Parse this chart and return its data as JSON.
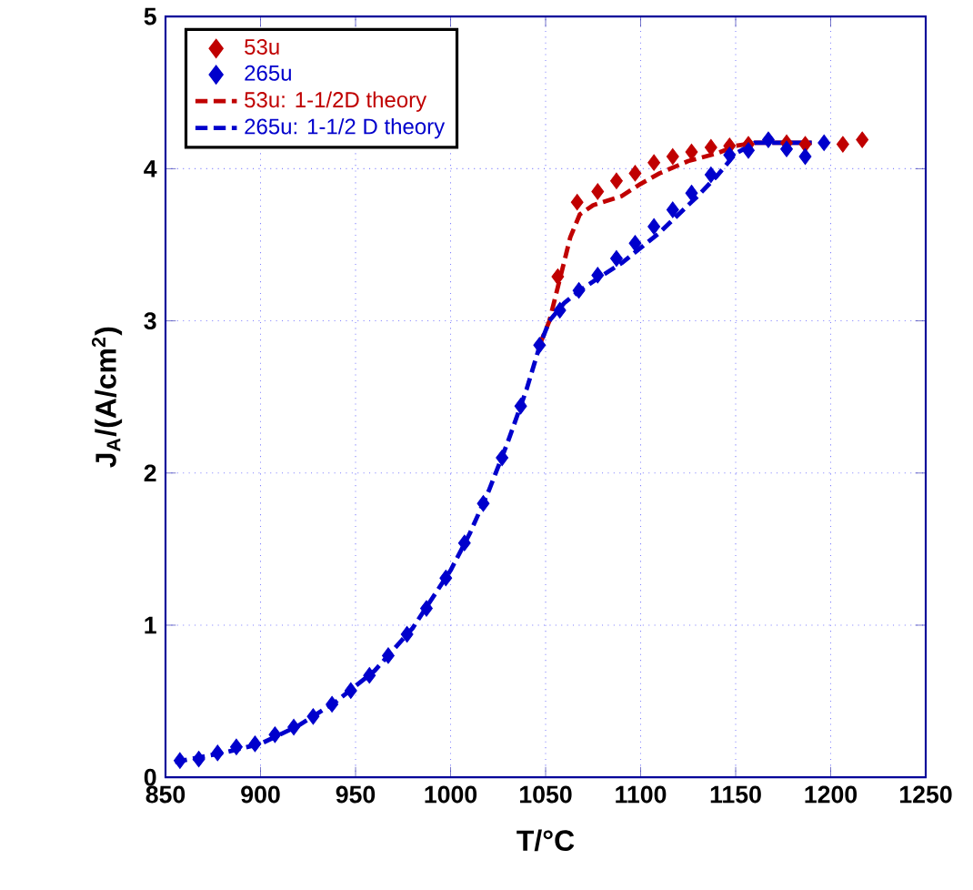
{
  "chart_data": {
    "type": "scatter",
    "xlabel": "T/°C",
    "ylabel": "J$_{A}$/(A/cm$^{2}$)",
    "xlim": [
      850,
      1250
    ],
    "ylim": [
      0,
      5
    ],
    "xticks": [
      850,
      900,
      950,
      1000,
      1050,
      1100,
      1150,
      1200,
      1250
    ],
    "yticks": [
      0,
      1,
      2,
      3,
      4,
      5
    ],
    "grid": true,
    "legend": "top left",
    "series": [
      {
        "name": "53u",
        "marker": "diamond",
        "color": "#c00000",
        "x": [
          1056.4,
          1066.6,
          1077.4,
          1087.3,
          1097.1,
          1107,
          1116.9,
          1126.8,
          1137,
          1146.8,
          1156.7,
          1167.2,
          1176.8,
          1186.6,
          1196.5,
          1206.4,
          1216.6
        ],
        "values": [
          3.29,
          3.78,
          3.85,
          3.92,
          3.97,
          4.04,
          4.08,
          4.11,
          4.14,
          4.15,
          4.16,
          null,
          4.17,
          4.16,
          null,
          4.16,
          4.19
        ]
      },
      {
        "name": "265u",
        "marker": "diamond",
        "color": "#0000cc",
        "x": [
          857.6,
          867.5,
          877.4,
          887.3,
          897.1,
          907.6,
          917.5,
          927.7,
          937.6,
          947.5,
          957.3,
          967.2,
          977.1,
          987.3,
          997.5,
          1007.3,
          1017.2,
          1027.1,
          1036.9,
          1046.8,
          1057.5,
          1067.5,
          1077.4,
          1087.3,
          1097.1,
          1107,
          1116.9,
          1126.8,
          1137,
          1146.8,
          1156.7,
          1167.2,
          1176.8,
          1186.6,
          1196.5
        ],
        "values": [
          0.11,
          0.12,
          0.16,
          0.2,
          0.22,
          0.28,
          0.33,
          0.4,
          0.48,
          0.57,
          0.67,
          0.8,
          0.94,
          1.11,
          1.31,
          1.54,
          1.8,
          2.1,
          2.44,
          2.84,
          3.07,
          3.2,
          3.3,
          3.41,
          3.51,
          3.62,
          3.73,
          3.84,
          3.96,
          4.09,
          4.12,
          4.19,
          4.13,
          4.08,
          4.17
        ]
      },
      {
        "name": "53u: 1-1/2D theory",
        "type": "line",
        "line_style": "dashed",
        "color": "#c00000",
        "x": [
          1046.8,
          1052,
          1058,
          1063,
          1068,
          1075,
          1090,
          1100,
          1110,
          1125,
          1140,
          1150,
          1160,
          1190
        ],
        "values": [
          2.84,
          3.0,
          3.3,
          3.55,
          3.7,
          3.76,
          3.82,
          3.9,
          3.97,
          4.05,
          4.1,
          4.15,
          4.17,
          4.17
        ]
      },
      {
        "name": "265u: 1-1/2 D theory",
        "type": "line",
        "line_style": "dashed",
        "color": "#0000cc",
        "x": [
          855,
          880,
          900,
          920,
          940,
          960,
          980,
          1000,
          1010,
          1020,
          1030,
          1040,
          1047,
          1052,
          1060,
          1068,
          1080,
          1090,
          1100,
          1110,
          1120,
          1130,
          1140,
          1150,
          1160,
          1190
        ],
        "values": [
          0.1,
          0.16,
          0.22,
          0.34,
          0.5,
          0.7,
          0.98,
          1.36,
          1.6,
          1.88,
          2.2,
          2.55,
          2.84,
          3.0,
          3.12,
          3.2,
          3.3,
          3.38,
          3.48,
          3.58,
          3.7,
          3.82,
          3.95,
          4.1,
          4.17,
          4.17
        ]
      }
    ]
  }
}
